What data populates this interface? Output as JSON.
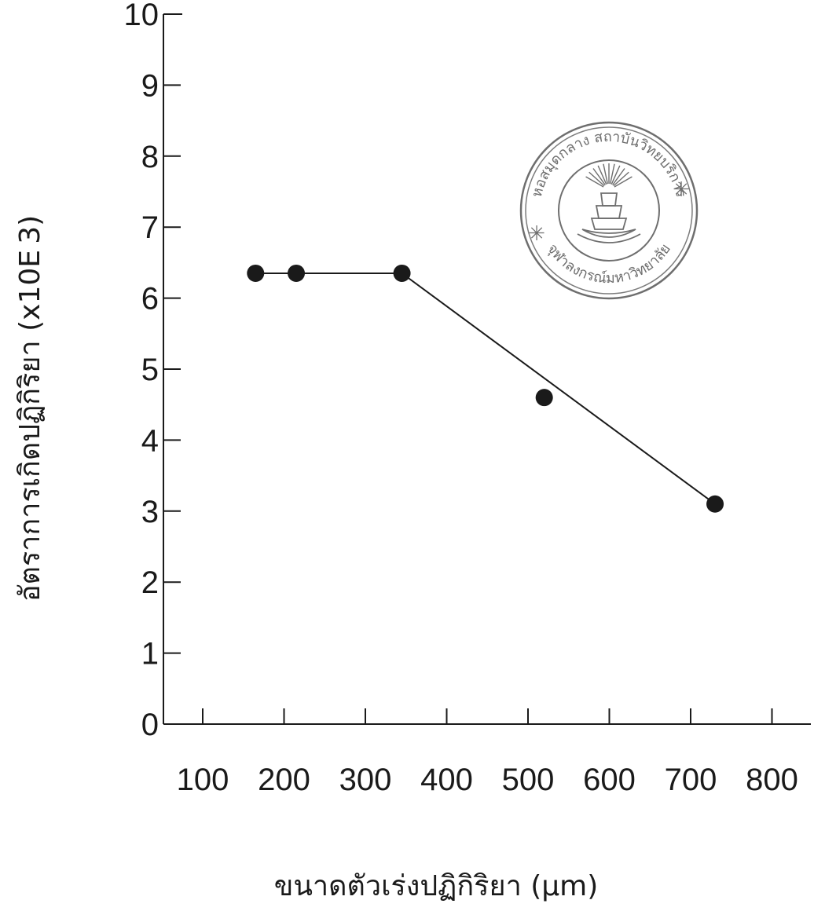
{
  "chart_data": {
    "type": "line",
    "title": "",
    "xlabel": "ขนาดตัวเร่งปฏิกิริยา (µm)",
    "ylabel": "อัตราการเกิดปฏิกิริยา (x10E 3)",
    "xlim": [
      50,
      850
    ],
    "ylim": [
      0,
      10
    ],
    "x_ticks": [
      100,
      200,
      300,
      400,
      500,
      600,
      700,
      800
    ],
    "y_ticks": [
      0,
      1,
      2,
      3,
      4,
      5,
      6,
      7,
      8,
      9,
      10
    ],
    "grid": false,
    "legend": "none",
    "series": [
      {
        "color": "#1a1a1a",
        "x": [
          165,
          215,
          345,
          520,
          730
        ],
        "y": [
          6.35,
          6.35,
          6.35,
          4.6,
          3.1
        ]
      }
    ],
    "fit_line": {
      "x": [
        165,
        215,
        345,
        730
      ],
      "y": [
        6.35,
        6.35,
        6.35,
        3.1
      ]
    }
  },
  "stamp": {
    "text_top": "หอสมุดกลาง สถาบันวิทยบริการ",
    "text_bottom": "จุฬาลงกรณ์มหาวิทยาลัย"
  }
}
